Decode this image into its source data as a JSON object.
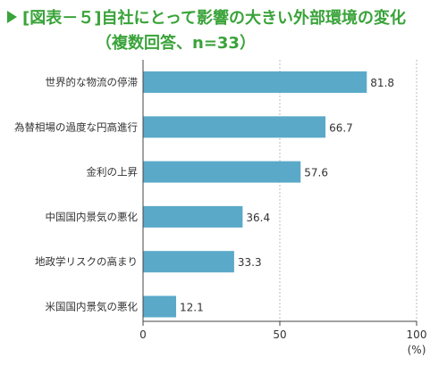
{
  "title": {
    "line1": "[図表－５]自社にとって影響の大きい外部環境の変化",
    "line2": "（複数回答、n=33）"
  },
  "colors": {
    "bar": "#5aa9c9",
    "title": "#3aa33a",
    "axis": "#444444",
    "grid": "#bbbbbb"
  },
  "chart_data": {
    "type": "bar",
    "orientation": "horizontal",
    "categories": [
      "世界的な物流の停滞",
      "為替相場の過度な円高進行",
      "金利の上昇",
      "中国国内景気の悪化",
      "地政学リスクの高まり",
      "米国国内景気の悪化"
    ],
    "values": [
      81.8,
      66.7,
      57.6,
      36.4,
      33.3,
      12.1
    ],
    "value_labels": [
      "81.8",
      "66.7",
      "57.6",
      "36.4",
      "33.3",
      "12.1"
    ],
    "xlim": [
      0,
      100
    ],
    "xticks": [
      "0",
      "50",
      "100"
    ],
    "xlabel": "(%)",
    "grid": true
  }
}
